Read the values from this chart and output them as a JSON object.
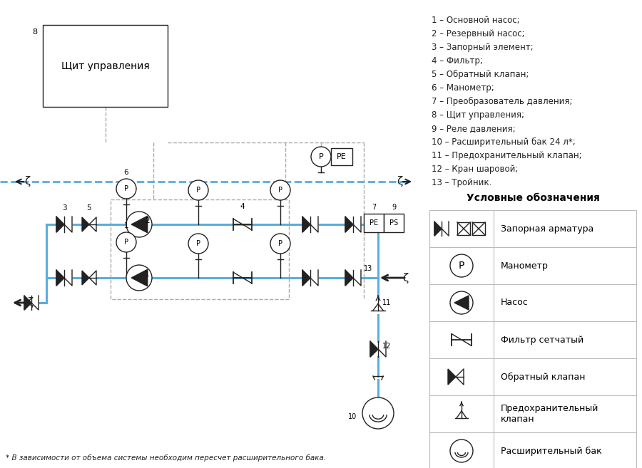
{
  "bg_color": "#ffffff",
  "blue": "#5aade0",
  "gray": "#aaaaaa",
  "black": "#222222",
  "numbered_items": [
    "1 – Основной насос;",
    "2 – Резервный насос;",
    "3 – Запорный элемент;",
    "4 – Фильтр;",
    "5 – Обратный клапан;",
    "6 – Манометр;",
    "7 – Преобразователь давления;",
    "8 – Щит управления;",
    "9 – Реле давления;",
    "10 – Расширительный бак 24 л*;",
    "11 – Предохранительный клапан;",
    "12 – Кран шаровой;",
    "13 – Тройник."
  ],
  "legend_title": "Условные обозначения",
  "legend_rows": [
    "Запорная арматура",
    "Манометр",
    "Насос",
    "Фильтр сетчатый",
    "Обратный клапан",
    "Предохранительный\nклапан",
    "Расширительный бак"
  ],
  "footnote": "* В зависимости от объема системы необходим пересчет расширительного бака.",
  "control_label": "Щит управления"
}
